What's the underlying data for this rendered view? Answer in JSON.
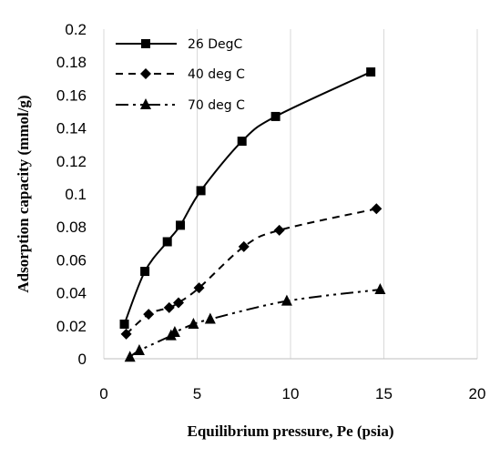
{
  "chart_data": {
    "type": "line",
    "title": "",
    "xlabel": "Equilibrium pressure, Pe (psia)",
    "ylabel": "Adsorption capacity (mmol/g)",
    "xlim": [
      0,
      20
    ],
    "ylim": [
      0,
      0.2
    ],
    "xticks": [
      "0",
      "5",
      "10",
      "15",
      "20"
    ],
    "yticks": [
      "0",
      "0.02",
      "0.04",
      "0.06",
      "0.08",
      "0.1",
      "0.12",
      "0.14",
      "0.16",
      "0.18",
      "0.2"
    ],
    "grid": "vertical-major",
    "legend_position": "top-left",
    "series": [
      {
        "name": "26 DegC",
        "marker": "square",
        "line": "solid",
        "x": [
          1.1,
          2.2,
          3.4,
          4.1,
          5.2,
          7.4,
          9.2,
          14.3
        ],
        "y": [
          0.021,
          0.053,
          0.071,
          0.081,
          0.102,
          0.132,
          0.147,
          0.174
        ]
      },
      {
        "name": "40 deg C",
        "marker": "diamond",
        "line": "dashed",
        "x": [
          1.2,
          2.4,
          3.5,
          4.0,
          5.1,
          7.5,
          9.4,
          14.6
        ],
        "y": [
          0.015,
          0.027,
          0.031,
          0.034,
          0.043,
          0.068,
          0.078,
          0.091
        ]
      },
      {
        "name": "70 deg C",
        "marker": "triangle",
        "line": "dash-dot-dot",
        "x": [
          1.4,
          1.9,
          3.6,
          3.8,
          4.8,
          5.7,
          9.8,
          14.8
        ],
        "y": [
          0.001,
          0.005,
          0.014,
          0.016,
          0.021,
          0.024,
          0.035,
          0.042
        ]
      }
    ]
  }
}
